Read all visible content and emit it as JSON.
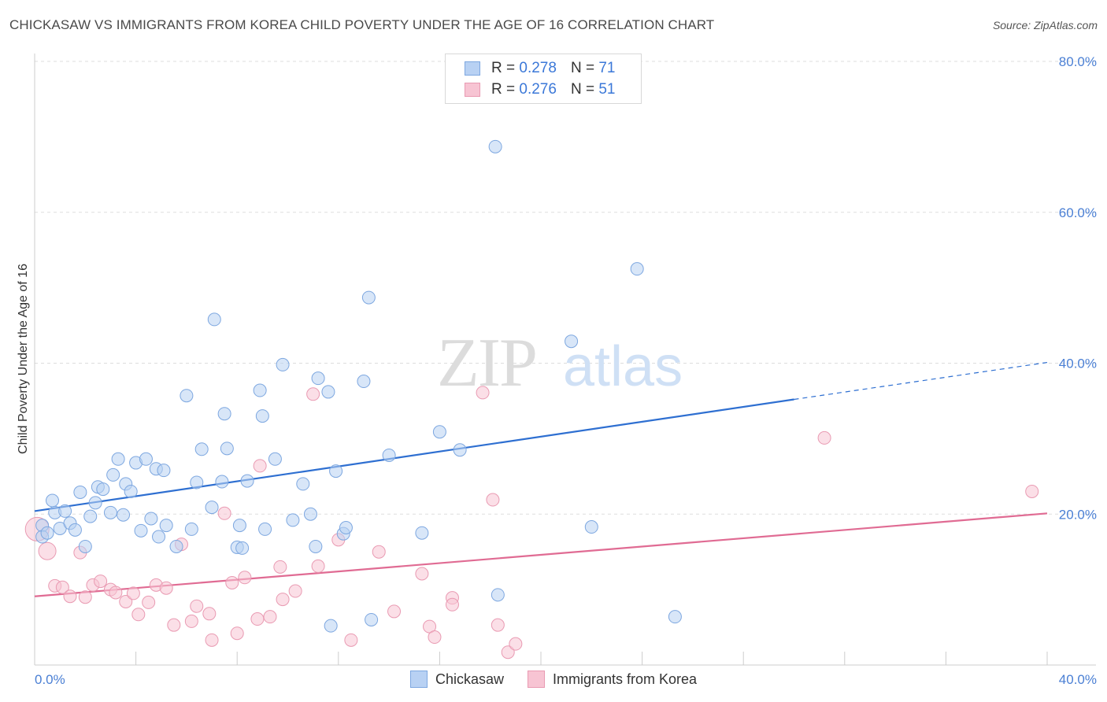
{
  "title": "CHICKASAW VS IMMIGRANTS FROM KOREA CHILD POVERTY UNDER THE AGE OF 16 CORRELATION CHART",
  "source": "Source: ZipAtlas.com",
  "legend": {
    "r_label": "R =",
    "n_label": "N =",
    "rows": [
      {
        "series": "Chickasaw",
        "r": "0.278",
        "n": "71"
      },
      {
        "series": "Immigrants from Korea",
        "r": "0.276",
        "n": "51"
      }
    ]
  },
  "colors": {
    "chickasaw_fill": "#b8d1f3",
    "chickasaw_stroke": "#7da7e0",
    "chickasaw_line": "#2e6fd1",
    "korea_fill": "#f7c4d3",
    "korea_stroke": "#e99ab2",
    "korea_line": "#e06b93",
    "tick_text": "#4a7fd4",
    "grid": "#dddddd"
  },
  "chart_data": {
    "type": "scatter",
    "title": "CHICKASAW VS IMMIGRANTS FROM KOREA CHILD POVERTY UNDER THE AGE OF 16 CORRELATION CHART",
    "xlabel": "",
    "ylabel": "Child Poverty Under the Age of 16",
    "xlim": [
      0,
      40
    ],
    "ylim": [
      0,
      80
    ],
    "x_tick_labels": [
      "0.0%",
      "40.0%"
    ],
    "y_tick_labels": [
      "20.0%",
      "40.0%",
      "60.0%",
      "80.0%"
    ],
    "y_ticks": [
      20,
      40,
      60,
      80
    ],
    "watermark": "ZIPatlas",
    "series": [
      {
        "name": "Chickasaw",
        "r": 0.278,
        "n": 71,
        "trend": {
          "x0": 0,
          "y0": 20.4,
          "x1": 30,
          "y1": 35.2,
          "dash_to_x": 40,
          "dash_to_y": 40.1
        },
        "points": [
          [
            0.3,
            18.5
          ],
          [
            0.3,
            17.0
          ],
          [
            0.5,
            17.5
          ],
          [
            0.7,
            21.8
          ],
          [
            0.8,
            20.2
          ],
          [
            1.0,
            18.1
          ],
          [
            1.2,
            20.4
          ],
          [
            1.4,
            18.8
          ],
          [
            1.6,
            17.9
          ],
          [
            1.8,
            22.9
          ],
          [
            2.0,
            15.7
          ],
          [
            2.2,
            19.7
          ],
          [
            2.4,
            21.5
          ],
          [
            2.5,
            23.6
          ],
          [
            2.7,
            23.3
          ],
          [
            3.0,
            20.2
          ],
          [
            3.1,
            25.2
          ],
          [
            3.3,
            27.3
          ],
          [
            3.5,
            19.9
          ],
          [
            3.6,
            24.0
          ],
          [
            3.8,
            23.0
          ],
          [
            4.0,
            26.8
          ],
          [
            4.2,
            17.8
          ],
          [
            4.4,
            27.3
          ],
          [
            4.6,
            19.4
          ],
          [
            4.8,
            26.0
          ],
          [
            4.9,
            17.0
          ],
          [
            5.1,
            25.8
          ],
          [
            5.2,
            18.5
          ],
          [
            5.6,
            15.7
          ],
          [
            6.0,
            35.7
          ],
          [
            6.2,
            18.0
          ],
          [
            6.4,
            24.2
          ],
          [
            6.6,
            28.6
          ],
          [
            7.0,
            20.9
          ],
          [
            7.1,
            45.8
          ],
          [
            7.4,
            24.3
          ],
          [
            7.5,
            33.3
          ],
          [
            7.6,
            28.7
          ],
          [
            8.0,
            15.6
          ],
          [
            8.1,
            18.5
          ],
          [
            8.2,
            15.5
          ],
          [
            8.4,
            24.4
          ],
          [
            8.9,
            36.4
          ],
          [
            9.0,
            33.0
          ],
          [
            9.1,
            18.0
          ],
          [
            9.5,
            27.3
          ],
          [
            9.8,
            39.8
          ],
          [
            10.2,
            19.2
          ],
          [
            10.6,
            24.0
          ],
          [
            10.9,
            20.0
          ],
          [
            11.1,
            15.7
          ],
          [
            11.2,
            38.0
          ],
          [
            11.6,
            36.2
          ],
          [
            11.7,
            5.2
          ],
          [
            11.9,
            25.7
          ],
          [
            12.2,
            17.4
          ],
          [
            12.3,
            18.2
          ],
          [
            13.0,
            37.6
          ],
          [
            13.2,
            48.7
          ],
          [
            13.3,
            6.0
          ],
          [
            14.0,
            27.8
          ],
          [
            15.3,
            17.5
          ],
          [
            16.0,
            30.9
          ],
          [
            16.8,
            28.5
          ],
          [
            18.2,
            68.7
          ],
          [
            18.3,
            9.3
          ],
          [
            21.2,
            42.9
          ],
          [
            22.0,
            18.3
          ],
          [
            23.8,
            52.5
          ],
          [
            25.3,
            6.4
          ]
        ]
      },
      {
        "name": "Immigrants from Korea",
        "r": 0.276,
        "n": 51,
        "trend": {
          "x0": 0,
          "y0": 9.1,
          "x1": 40,
          "y1": 20.1
        },
        "points": [
          [
            0.1,
            18.0
          ],
          [
            0.5,
            15.1
          ],
          [
            0.8,
            10.5
          ],
          [
            1.1,
            10.3
          ],
          [
            1.4,
            9.1
          ],
          [
            1.8,
            14.9
          ],
          [
            2.0,
            9.0
          ],
          [
            2.3,
            10.6
          ],
          [
            2.6,
            11.1
          ],
          [
            3.0,
            10.0
          ],
          [
            3.2,
            9.6
          ],
          [
            3.6,
            8.4
          ],
          [
            3.9,
            9.5
          ],
          [
            4.1,
            6.7
          ],
          [
            4.5,
            8.3
          ],
          [
            4.8,
            10.6
          ],
          [
            5.2,
            10.2
          ],
          [
            5.5,
            5.3
          ],
          [
            5.8,
            16.0
          ],
          [
            6.2,
            5.8
          ],
          [
            6.4,
            7.8
          ],
          [
            6.9,
            6.8
          ],
          [
            7.0,
            3.3
          ],
          [
            7.5,
            20.1
          ],
          [
            7.8,
            10.9
          ],
          [
            8.0,
            4.2
          ],
          [
            8.3,
            11.6
          ],
          [
            8.8,
            6.1
          ],
          [
            8.9,
            26.4
          ],
          [
            9.3,
            6.4
          ],
          [
            9.7,
            13.0
          ],
          [
            9.8,
            8.7
          ],
          [
            10.3,
            9.8
          ],
          [
            11.0,
            35.9
          ],
          [
            11.2,
            13.1
          ],
          [
            12.0,
            16.6
          ],
          [
            12.5,
            3.3
          ],
          [
            13.6,
            15.0
          ],
          [
            14.2,
            7.1
          ],
          [
            15.3,
            12.1
          ],
          [
            15.6,
            5.1
          ],
          [
            15.8,
            3.7
          ],
          [
            16.5,
            8.9
          ],
          [
            16.5,
            8.0
          ],
          [
            17.7,
            36.1
          ],
          [
            18.1,
            21.9
          ],
          [
            18.3,
            5.3
          ],
          [
            18.7,
            1.7
          ],
          [
            19.0,
            2.8
          ],
          [
            31.2,
            30.1
          ],
          [
            39.4,
            23.0
          ]
        ]
      }
    ]
  },
  "bottom_legend": [
    "Chickasaw",
    "Immigrants from Korea"
  ]
}
